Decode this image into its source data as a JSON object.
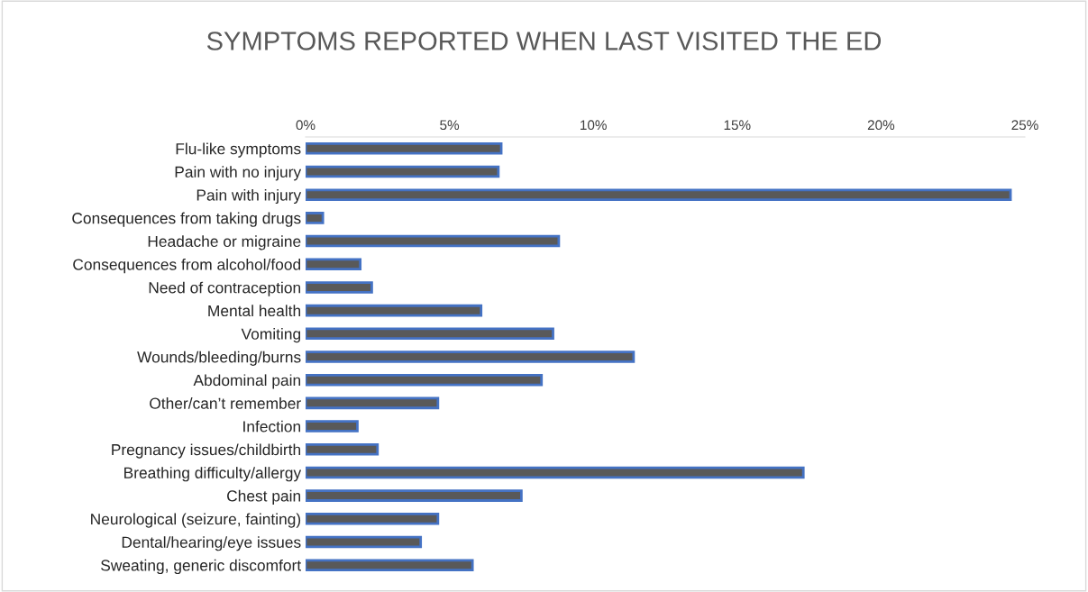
{
  "chart_data": {
    "type": "bar",
    "orientation": "horizontal",
    "title": "SYMPTOMS REPORTED WHEN LAST VISITED THE ED",
    "categories": [
      "Flu-like symptoms",
      "Pain with no injury",
      "Pain with injury",
      "Consequences from taking drugs",
      "Headache or migraine",
      "Consequences from alcohol/food",
      "Need of contraception",
      "Mental health",
      "Vomiting",
      "Wounds/bleeding/burns",
      "Abdominal pain",
      "Other/can’t remember",
      "Infection",
      "Pregnancy issues/childbirth",
      "Breathing difficulty/allergy",
      "Chest pain",
      "Neurological (seizure, fainting)",
      "Dental/hearing/eye issues",
      "Sweating, generic discomfort"
    ],
    "values": [
      6.8,
      6.7,
      24.5,
      0.6,
      8.8,
      1.9,
      2.3,
      6.1,
      8.6,
      11.4,
      8.2,
      4.6,
      1.8,
      2.5,
      17.3,
      7.5,
      4.6,
      4.0,
      5.8
    ],
    "color": "#595959",
    "xlim": [
      0,
      25
    ],
    "xticks": [
      {
        "value": 0,
        "label": "0%"
      },
      {
        "value": 5,
        "label": "5%"
      },
      {
        "value": 10,
        "label": "10%"
      },
      {
        "value": 15,
        "label": "15%"
      },
      {
        "value": 20,
        "label": "20%"
      },
      {
        "value": 25,
        "label": "25%"
      }
    ],
    "grid": false,
    "legend": false
  }
}
